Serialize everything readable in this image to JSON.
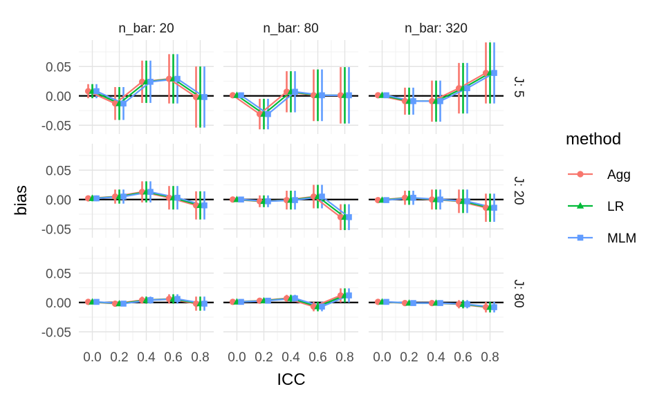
{
  "chart_data": {
    "type": "line",
    "xlabel": "ICC",
    "ylabel": "bias",
    "x": [
      0.0,
      0.2,
      0.4,
      0.6,
      0.8
    ],
    "x_tick_labels": [
      "0.0",
      "0.2",
      "0.4",
      "0.6",
      "0.8"
    ],
    "y_ticks": [
      0.05,
      0.0,
      -0.05
    ],
    "y_tick_labels": [
      "0.05",
      "0.00",
      "-0.05"
    ],
    "ylim": [
      -0.065,
      0.095
    ],
    "hline": 0,
    "col_facets": [
      "n_bar: 20",
      "n_bar: 80",
      "n_bar: 320"
    ],
    "row_facets": [
      "J: 5",
      "J: 20",
      "J: 80"
    ],
    "legend": {
      "title": "method",
      "entries": [
        {
          "name": "Agg",
          "color": "#F8766D",
          "shape": "circle"
        },
        {
          "name": "LR",
          "color": "#00BA38",
          "shape": "triangle"
        },
        {
          "name": "MLM",
          "color": "#619CFF",
          "shape": "square"
        }
      ]
    },
    "panels": [
      {
        "row": 0,
        "col": 0,
        "mean": [
          0.008,
          -0.013,
          0.024,
          0.029,
          -0.002
        ],
        "err": [
          0.012,
          0.028,
          0.036,
          0.042,
          0.052
        ]
      },
      {
        "row": 0,
        "col": 1,
        "mean": [
          0.001,
          -0.031,
          0.007,
          0.001,
          0.001
        ],
        "err": [
          0.004,
          0.026,
          0.035,
          0.044,
          0.048
        ]
      },
      {
        "row": 0,
        "col": 2,
        "mean": [
          0.001,
          -0.009,
          -0.009,
          0.013,
          0.039
        ],
        "err": [
          0.004,
          0.023,
          0.035,
          0.043,
          0.052
        ]
      },
      {
        "row": 1,
        "col": 0,
        "mean": [
          0.002,
          0.005,
          0.013,
          0.003,
          -0.01
        ],
        "err": [
          0.005,
          0.012,
          0.018,
          0.02,
          0.024
        ]
      },
      {
        "row": 1,
        "col": 1,
        "mean": [
          0.0,
          -0.003,
          -0.001,
          0.005,
          -0.03
        ],
        "err": [
          0.004,
          0.01,
          0.016,
          0.02,
          0.022
        ]
      },
      {
        "row": 1,
        "col": 2,
        "mean": [
          -0.001,
          0.003,
          0.0,
          -0.003,
          -0.014
        ],
        "err": [
          0.004,
          0.012,
          0.017,
          0.02,
          0.024
        ]
      },
      {
        "row": 2,
        "col": 0,
        "mean": [
          0.001,
          -0.002,
          0.004,
          0.006,
          -0.002
        ],
        "err": [
          0.003,
          0.004,
          0.006,
          0.008,
          0.012
        ]
      },
      {
        "row": 2,
        "col": 1,
        "mean": [
          0.001,
          0.003,
          0.007,
          -0.007,
          0.012
        ],
        "err": [
          0.003,
          0.004,
          0.006,
          0.008,
          0.012
        ]
      },
      {
        "row": 2,
        "col": 2,
        "mean": [
          0.001,
          -0.001,
          -0.001,
          -0.003,
          -0.008
        ],
        "err": [
          0.003,
          0.003,
          0.004,
          0.007,
          0.009
        ]
      }
    ]
  }
}
